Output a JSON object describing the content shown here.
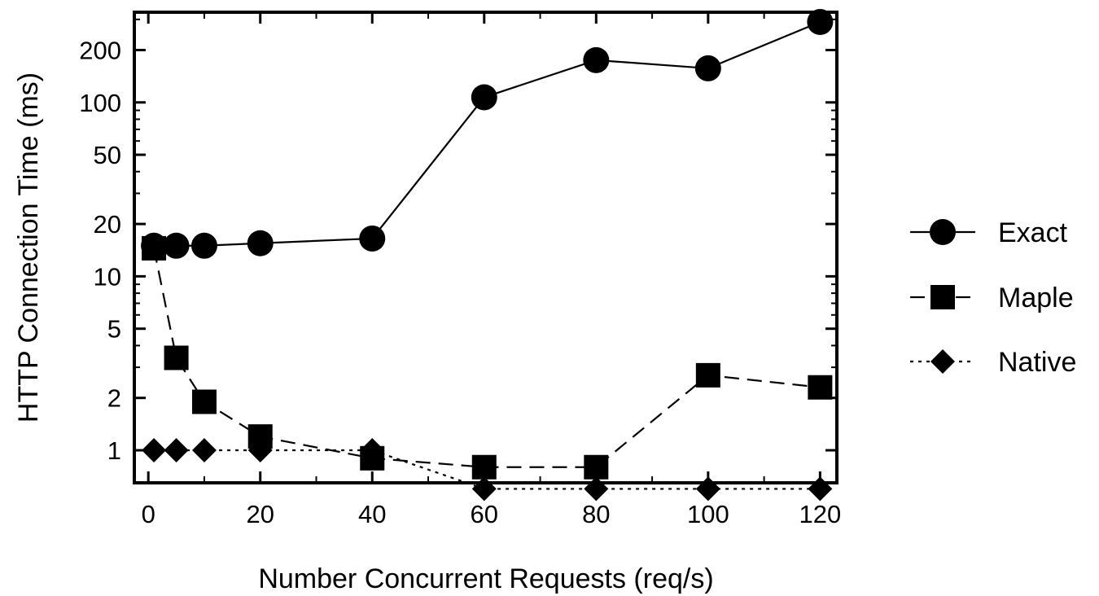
{
  "chart_data": {
    "type": "line",
    "title": "",
    "xlabel": "Number Concurrent Requests (req/s)",
    "ylabel": "HTTP Connection Time (ms)",
    "xlim": [
      -2.5,
      123
    ],
    "ylim": [
      0.65,
      330
    ],
    "y_scale": "log",
    "grid": false,
    "legend_position": "right",
    "x_ticks": [
      0,
      20,
      40,
      60,
      80,
      100,
      120
    ],
    "y_ticks": [
      1,
      2,
      5,
      10,
      20,
      50,
      100,
      200
    ],
    "series": [
      {
        "name": "Exact",
        "marker": "circle",
        "line_style": "solid",
        "color": "#000000",
        "x": [
          1,
          5,
          10,
          20,
          40,
          60,
          80,
          100,
          120
        ],
        "y": [
          15,
          15,
          15,
          15.5,
          16.5,
          107,
          175,
          157,
          290
        ]
      },
      {
        "name": "Maple",
        "marker": "square",
        "line_style": "dashed",
        "color": "#000000",
        "x": [
          1,
          5,
          10,
          20,
          40,
          60,
          80,
          100,
          120
        ],
        "y": [
          14.5,
          3.4,
          1.9,
          1.2,
          0.9,
          0.8,
          0.8,
          2.7,
          2.3
        ]
      },
      {
        "name": "Native",
        "marker": "diamond",
        "line_style": "dotted",
        "color": "#000000",
        "x": [
          1,
          5,
          10,
          20,
          40,
          60,
          80,
          100,
          120
        ],
        "y": [
          1.0,
          1.0,
          1.0,
          1.0,
          1.0,
          0.6,
          0.6,
          0.6,
          0.6
        ]
      }
    ]
  }
}
